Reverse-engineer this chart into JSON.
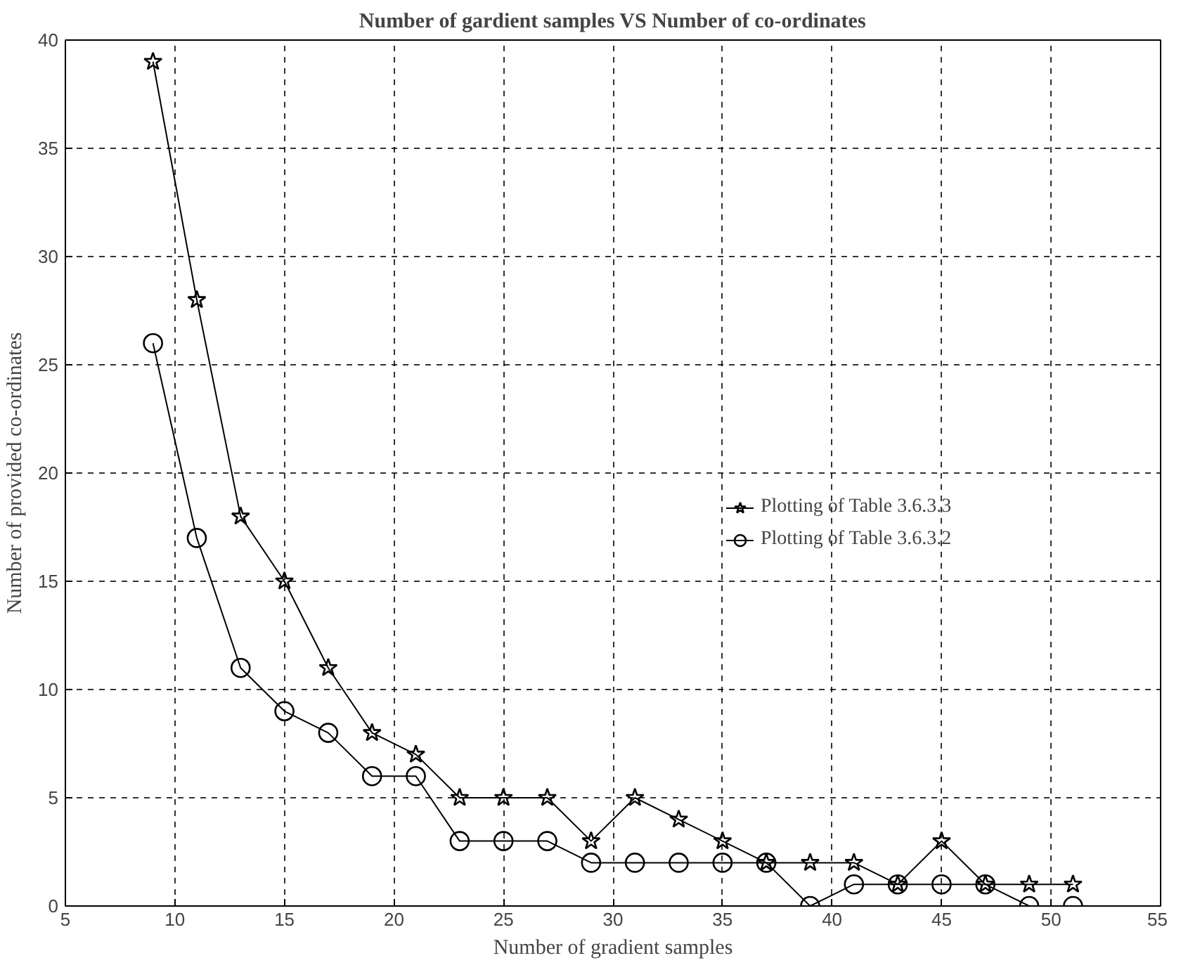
{
  "chart_data": {
    "type": "line",
    "title": "Number of gardient samples VS Number of co-ordinates",
    "xlabel": "Number of gradient samples",
    "ylabel": "Number of provided co-ordinates",
    "x": [
      9,
      11,
      13,
      15,
      17,
      19,
      21,
      23,
      25,
      27,
      29,
      31,
      33,
      35,
      37,
      39,
      41,
      43,
      45,
      47,
      49,
      51
    ],
    "series": [
      {
        "name": "Plotting of Table 3.6.3.3",
        "color": "#000000",
        "marker": "star",
        "values": [
          39,
          28,
          18,
          15,
          11,
          8,
          7,
          5,
          5,
          5,
          3,
          5,
          4,
          3,
          2,
          2,
          2,
          1,
          3,
          1,
          1,
          1
        ]
      },
      {
        "name": "Plotting of Table 3.6.3.2",
        "color": "#000000",
        "marker": "circle",
        "values": [
          26,
          17,
          11,
          9,
          8,
          6,
          6,
          3,
          3,
          3,
          2,
          2,
          2,
          2,
          2,
          0,
          1,
          1,
          1,
          1,
          0,
          0
        ]
      }
    ],
    "xlim": [
      5,
      55
    ],
    "xticks": [
      5,
      10,
      15,
      20,
      25,
      30,
      35,
      40,
      45,
      50,
      55
    ],
    "ylim": [
      0,
      40
    ],
    "yticks": [
      0,
      5,
      10,
      15,
      20,
      25,
      30,
      35,
      40
    ],
    "grid": true,
    "legend": "right",
    "line_style": "solid"
  }
}
